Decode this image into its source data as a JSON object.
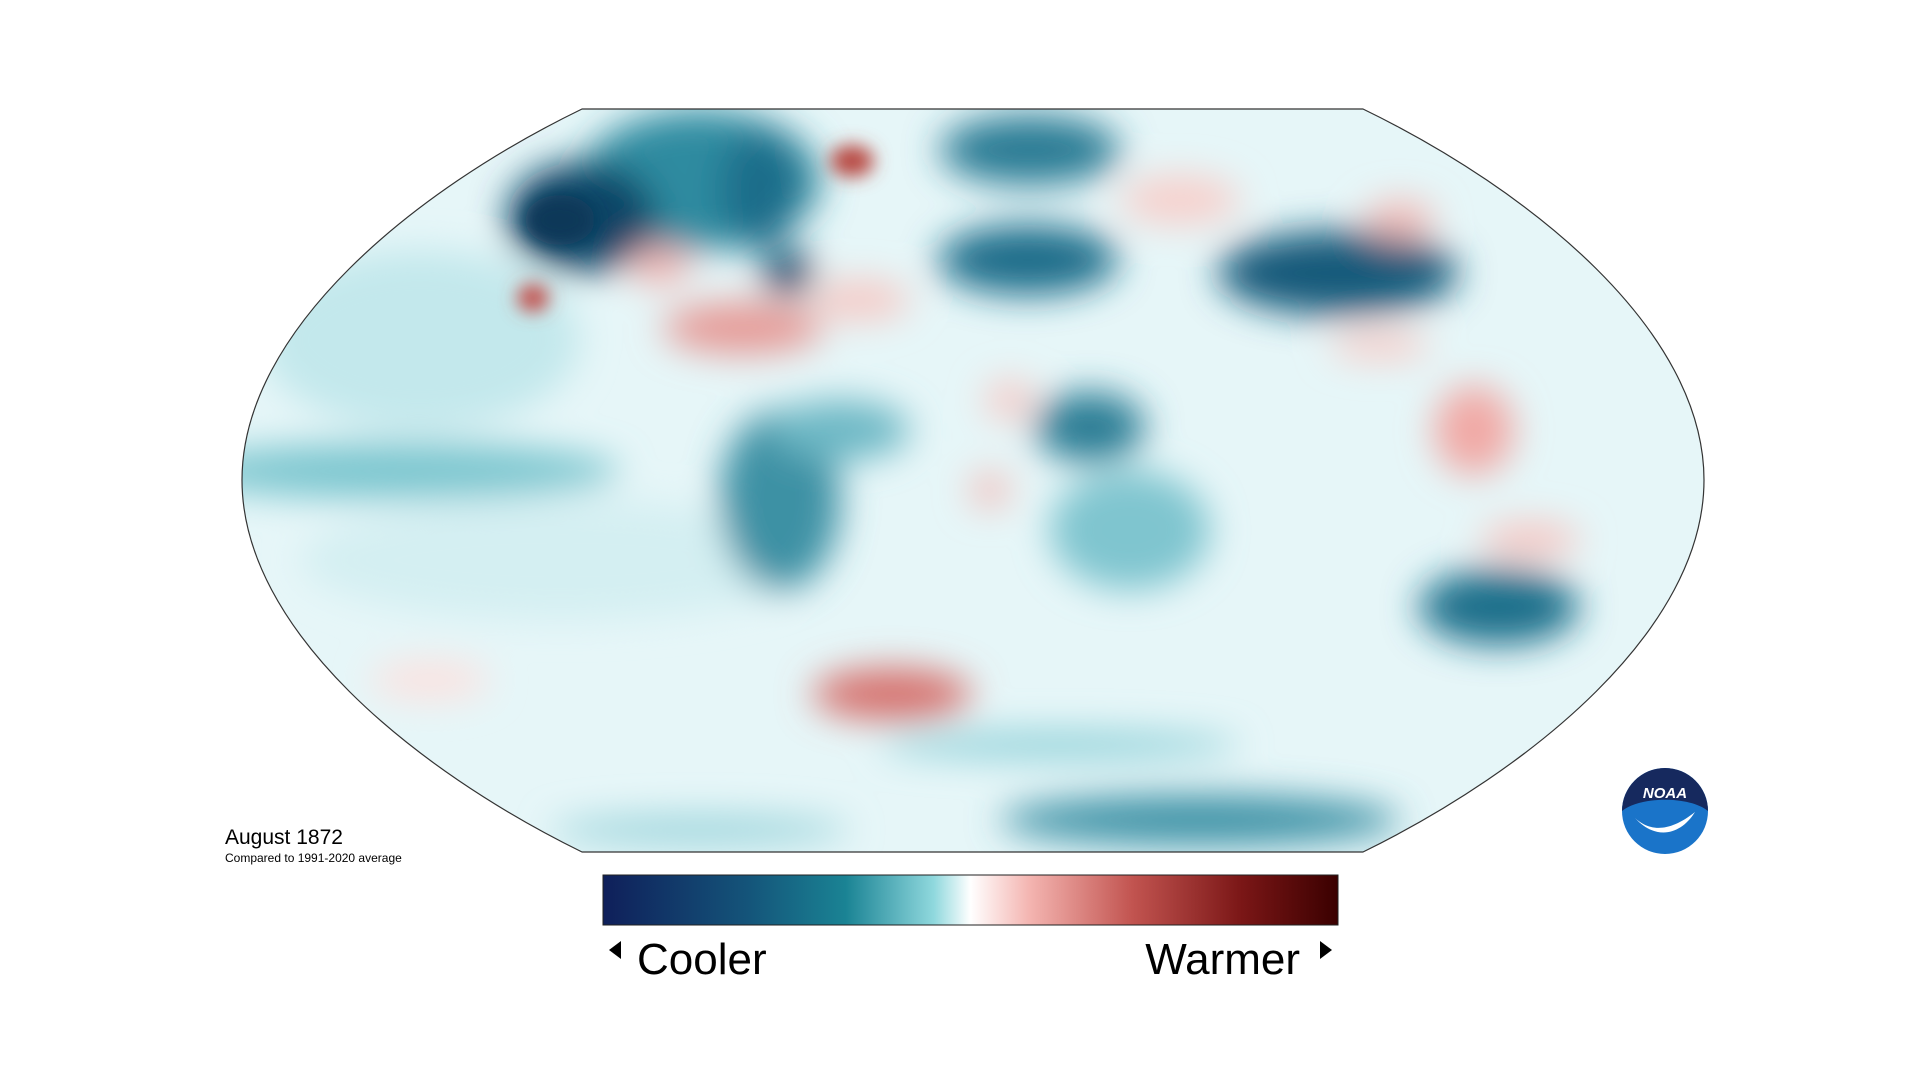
{
  "map": {
    "title": "August 1872",
    "subtitle": "Compared to 1991-2020 average"
  },
  "legend": {
    "low_label": "Cooler",
    "high_label": "Warmer"
  },
  "logo": {
    "text": "NOAA"
  }
}
